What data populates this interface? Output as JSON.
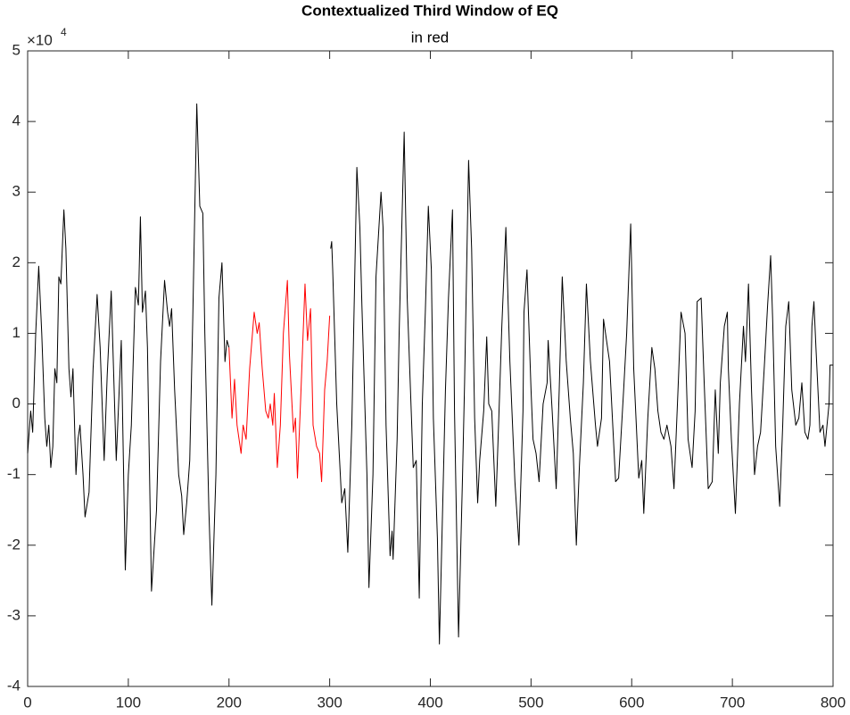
{
  "chart_data": {
    "type": "line",
    "title": "Contextualized Third Window of EQ",
    "subtitle": "in red",
    "y_exponent_base": "×10",
    "y_exponent": "4",
    "xlim": [
      0,
      800
    ],
    "ylim": [
      -4,
      5
    ],
    "xticks": [
      0,
      100,
      200,
      300,
      400,
      500,
      600,
      700,
      800
    ],
    "yticks": [
      -4,
      -3,
      -2,
      -1,
      0,
      1,
      2,
      3,
      4,
      5
    ],
    "grid": false,
    "series": [
      {
        "color": "#000000",
        "x": [
          0,
          3,
          5,
          8,
          11,
          14,
          17,
          19,
          21,
          23,
          25,
          27,
          29,
          31,
          33,
          36,
          38,
          41,
          43,
          45,
          48,
          50,
          52,
          55,
          57,
          61,
          65,
          69,
          72,
          76,
          79,
          83,
          88,
          93,
          97,
          100,
          103,
          107,
          110,
          112,
          114,
          117,
          119,
          123,
          128,
          132,
          136,
          139,
          141,
          143,
          146,
          150,
          153,
          155,
          158,
          161,
          164,
          168,
          171,
          174,
          176,
          180,
          183,
          187,
          190,
          193,
          196,
          198,
          200
        ],
        "values": [
          -0.7,
          -0.1,
          -0.4,
          1.0,
          1.95,
          1.0,
          -0.2,
          -0.6,
          -0.3,
          -0.9,
          -0.6,
          0.5,
          0.3,
          1.8,
          1.7,
          2.75,
          2.2,
          0.5,
          0.1,
          0.5,
          -1.0,
          -0.5,
          -0.3,
          -1.0,
          -1.6,
          -1.25,
          0.5,
          1.55,
          0.8,
          -0.8,
          0.4,
          1.6,
          -0.8,
          0.9,
          -2.35,
          -1.0,
          -0.3,
          1.65,
          1.4,
          2.65,
          1.3,
          1.6,
          0.8,
          -2.65,
          -1.5,
          0.6,
          1.75,
          1.3,
          1.1,
          1.35,
          0.2,
          -1.0,
          -1.3,
          -1.85,
          -1.4,
          -0.8,
          1.2,
          4.25,
          2.8,
          2.7,
          1.0,
          -1.5,
          -2.85,
          -1.0,
          1.5,
          2.0,
          0.6,
          0.9,
          0.8
        ]
      },
      {
        "color": "#ff0000",
        "x": [
          200,
          203,
          205.5,
          208,
          212,
          214,
          217,
          220.5,
          225,
          228,
          230,
          233,
          236.5,
          239,
          241,
          243.5,
          245,
          248,
          251,
          254,
          258,
          260,
          264,
          266,
          268,
          271,
          275.5,
          278,
          281,
          283.5,
          287,
          290,
          292,
          295,
          297.5,
          300
        ],
        "values": [
          0.8,
          -0.2,
          0.35,
          -0.3,
          -0.7,
          -0.3,
          -0.5,
          0.5,
          1.3,
          1.0,
          1.15,
          0.5,
          -0.1,
          -0.2,
          0.0,
          -0.3,
          0.15,
          -0.9,
          -0.3,
          1.0,
          1.75,
          0.7,
          -0.4,
          -0.2,
          -1.05,
          0.0,
          1.7,
          0.9,
          1.35,
          -0.3,
          -0.6,
          -0.7,
          -1.1,
          0.2,
          0.6,
          1.25
        ]
      },
      {
        "color": "#000000",
        "x": [
          301,
          302,
          303,
          307,
          312,
          315,
          318,
          322,
          327,
          330,
          332,
          337,
          339,
          343,
          346,
          351,
          353,
          356,
          360,
          362,
          363,
          367,
          369,
          374,
          377,
          383,
          386,
          389,
          392,
          395,
          398,
          401,
          403,
          407,
          409,
          413,
          415,
          418,
          422,
          424,
          428,
          432,
          434,
          438,
          441,
          444,
          447,
          449,
          453,
          456,
          458,
          461,
          465,
          468,
          471,
          475,
          479,
          484,
          488,
          492,
          493,
          496,
          500,
          502,
          505,
          508,
          512,
          516,
          517,
          521,
          525,
          528,
          531,
          533,
          535,
          539,
          542,
          545,
          548,
          552,
          555,
          559,
          564,
          566,
          570,
          572,
          576,
          578,
          584,
          587,
          592,
          595,
          599,
          602,
          607,
          610,
          612,
          616,
          620,
          623,
          626,
          629,
          632,
          635,
          639,
          642,
          646,
          649,
          653,
          656,
          660,
          663,
          665,
          669,
          672,
          676,
          680,
          683,
          686,
          688,
          692,
          695,
          696,
          699,
          703,
          707,
          711,
          713,
          716,
          719,
          722,
          725,
          728,
          732,
          735,
          738,
          740,
          743,
          747,
          750,
          753,
          756,
          759,
          763,
          766,
          769,
          772,
          775,
          777,
          779,
          781,
          783,
          787,
          790,
          792,
          796,
          797,
          800
        ],
        "values": [
          2.2,
          2.3,
          1.9,
          0.0,
          -1.4,
          -1.2,
          -2.1,
          -0.3,
          3.35,
          2.5,
          1.4,
          -1.0,
          -2.6,
          -1.0,
          1.8,
          3.0,
          2.5,
          -0.3,
          -2.15,
          -1.8,
          -2.2,
          -0.5,
          1.0,
          3.85,
          1.5,
          -0.9,
          -0.8,
          -2.75,
          0.0,
          1.3,
          2.8,
          1.9,
          -0.2,
          -1.9,
          -3.4,
          -1.0,
          0.2,
          1.5,
          2.75,
          -0.1,
          -3.3,
          -1.0,
          0.3,
          3.45,
          2.2,
          -0.2,
          -1.4,
          -0.8,
          -0.1,
          0.95,
          0.0,
          -0.1,
          -1.45,
          -0.2,
          1.1,
          2.5,
          0.6,
          -1.1,
          -2.0,
          -0.1,
          1.3,
          1.9,
          0.2,
          -0.5,
          -0.7,
          -1.1,
          0.0,
          0.3,
          0.9,
          -0.1,
          -1.2,
          0.2,
          1.8,
          1.2,
          0.6,
          -0.2,
          -0.7,
          -2.0,
          -0.9,
          0.3,
          1.7,
          0.6,
          -0.3,
          -0.6,
          -0.2,
          1.2,
          0.8,
          0.6,
          -1.1,
          -1.05,
          0.2,
          1.0,
          2.55,
          0.5,
          -1.05,
          -0.8,
          -1.55,
          -0.2,
          0.8,
          0.5,
          -0.1,
          -0.4,
          -0.5,
          -0.3,
          -0.6,
          -1.2,
          0.2,
          1.3,
          1.0,
          -0.5,
          -0.9,
          -0.1,
          1.45,
          1.5,
          0.3,
          -1.2,
          -1.1,
          0.2,
          -0.7,
          0.3,
          1.1,
          1.3,
          0.5,
          -0.5,
          -1.55,
          0.0,
          1.1,
          0.6,
          1.7,
          0.2,
          -1.0,
          -0.6,
          -0.4,
          0.6,
          1.4,
          2.1,
          1.2,
          -0.6,
          -1.45,
          -0.3,
          1.1,
          1.45,
          0.2,
          -0.3,
          -0.2,
          0.3,
          -0.4,
          -0.5,
          -0.3,
          1.1,
          1.45,
          0.8,
          -0.4,
          -0.3,
          -0.6,
          0.0,
          0.55,
          0.55
        ]
      }
    ]
  }
}
